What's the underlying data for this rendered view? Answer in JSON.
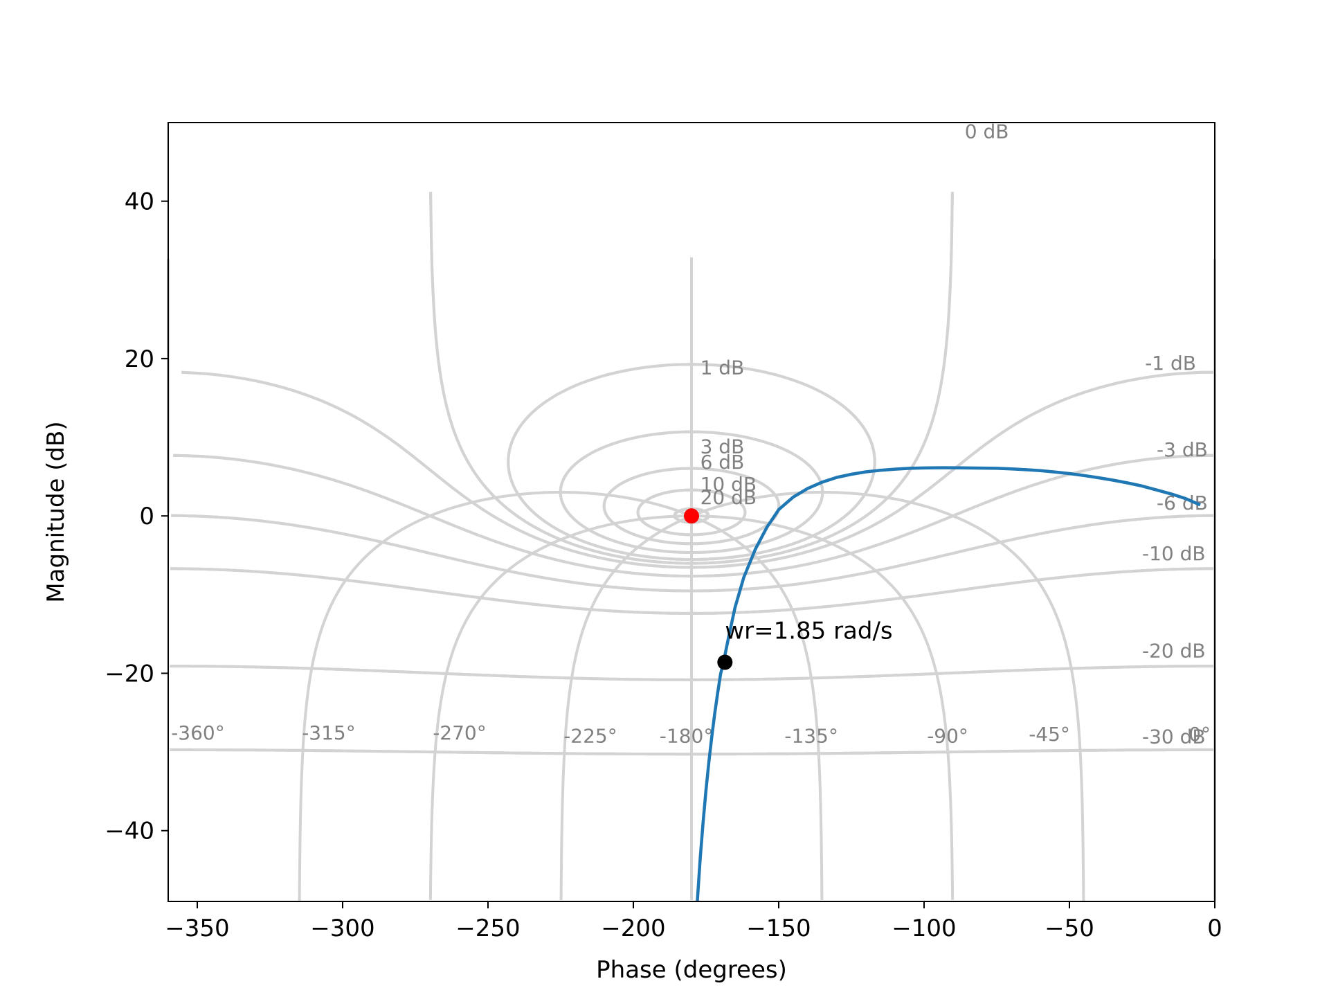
{
  "chart_data": {
    "type": "line",
    "title": "",
    "xlabel": "Phase (degrees)",
    "ylabel": "Magnitude (dB)",
    "xlim": [
      -360,
      0
    ],
    "ylim": [
      -49,
      50
    ],
    "xticks": [
      -350,
      -300,
      -250,
      -200,
      -150,
      -100,
      -50,
      0
    ],
    "xtick_labels": [
      "−350",
      "−300",
      "−250",
      "−200",
      "−150",
      "−100",
      "−50",
      "0"
    ],
    "yticks": [
      -40,
      -20,
      0,
      20,
      40
    ],
    "ytick_labels": [
      "−40",
      "−20",
      "0",
      "20",
      "40"
    ],
    "grid": "nichols",
    "grid_color": "#d3d3d3",
    "grid_label_color": "#808080",
    "magnitude_contours_db": [
      20,
      10,
      6,
      3,
      1,
      0,
      -1,
      -3,
      -6,
      -10,
      -20,
      -30
    ],
    "magnitude_contour_labels": [
      "20 dB",
      "10 dB",
      "6 dB",
      "3 dB",
      "1 dB",
      "0 dB",
      "-1 dB",
      "-3 dB",
      "-6 dB",
      "-10 dB",
      "-20 dB",
      "-30 dB"
    ],
    "phase_contours_deg": [
      -360,
      -315,
      -270,
      -225,
      -180,
      -135,
      -90,
      -45,
      0
    ],
    "phase_contour_labels": [
      "-360°",
      "-315°",
      "-270°",
      "-225°",
      "-180°",
      "-135°",
      "-90°",
      "-45°",
      "0°"
    ],
    "series": [
      {
        "color": "#1f77b4",
        "x": [
          -178,
          -177,
          -176,
          -175,
          -174,
          -173,
          -172,
          -171,
          -170,
          -169,
          -168,
          -167,
          -165,
          -162,
          -158,
          -154,
          -150,
          -145,
          -140,
          -135,
          -130,
          -125,
          -120,
          -115,
          -110,
          -105,
          -100,
          -95,
          -90,
          -85,
          -80,
          -75,
          -70,
          -65,
          -60,
          -55,
          -50,
          -45,
          -40,
          -35,
          -30,
          -25,
          -20,
          -15,
          -10,
          -5
        ],
        "y": [
          -49,
          -43.5,
          -38.9,
          -34.8,
          -31.2,
          -28.0,
          -25.1,
          -22.5,
          -20.1,
          -18.6,
          -16.8,
          -15.0,
          -11.6,
          -7.8,
          -4.2,
          -1.4,
          0.8,
          2.4,
          3.5,
          4.3,
          4.9,
          5.3,
          5.6,
          5.8,
          5.95,
          6.05,
          6.1,
          6.12,
          6.12,
          6.1,
          6.08,
          6.05,
          5.98,
          5.88,
          5.75,
          5.58,
          5.38,
          5.14,
          4.86,
          4.55,
          4.2,
          3.8,
          3.3,
          2.8,
          2.2,
          1.4
        ]
      }
    ],
    "points": [
      {
        "x": -180,
        "y": 0,
        "color": "#ff0000"
      },
      {
        "x": -168.5,
        "y": -18.6,
        "color": "#000000"
      }
    ],
    "annotations": [
      {
        "text": "wr=1.85 rad/s",
        "x": -168.5,
        "y": -18.6
      }
    ]
  }
}
